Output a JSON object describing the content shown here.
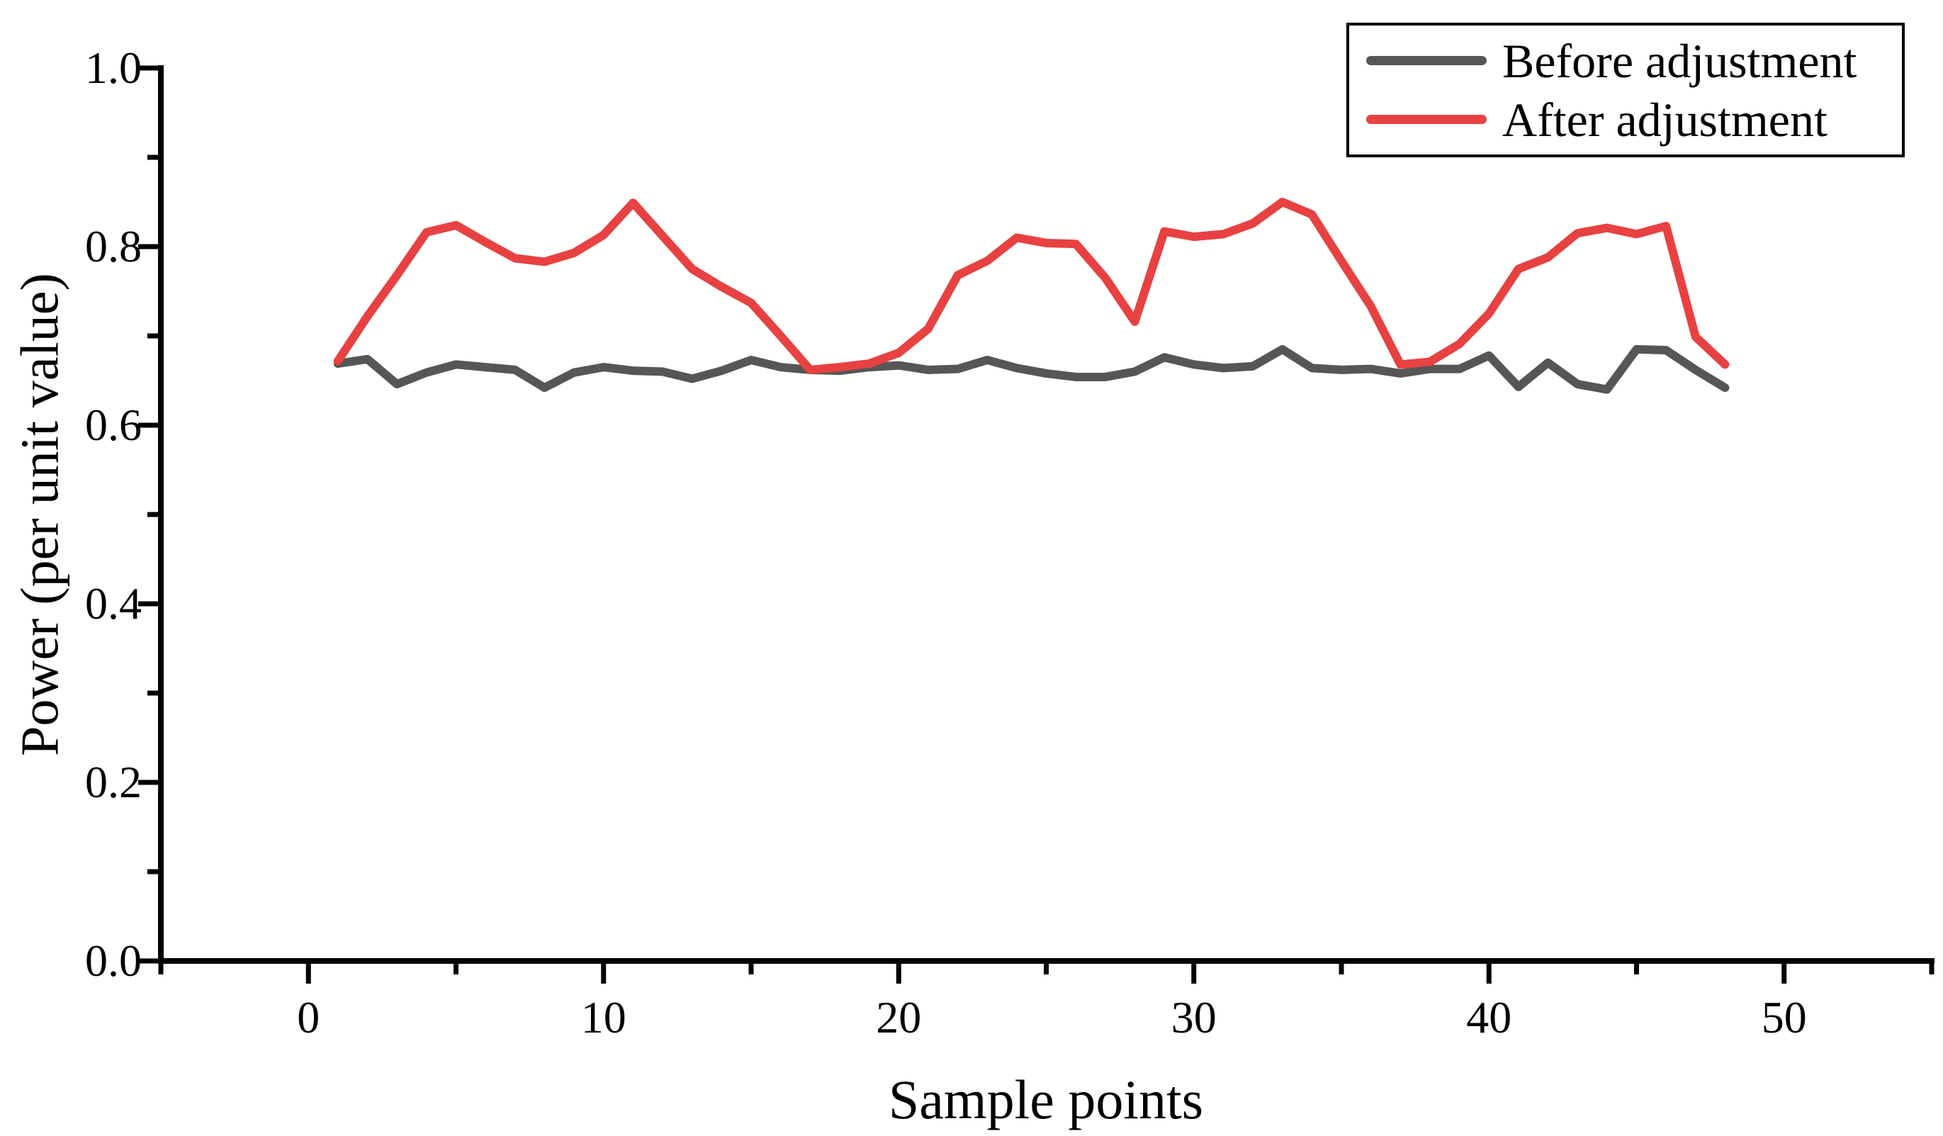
{
  "chart_data": {
    "type": "line",
    "title": "",
    "xlabel": "Sample points",
    "ylabel": "Power (per unit value)",
    "xlim": [
      -5,
      55
    ],
    "ylim": [
      0.0,
      1.0
    ],
    "grid": false,
    "legend_position": "top-right",
    "x_major_ticks": [
      0,
      10,
      20,
      30,
      40,
      50
    ],
    "x_tick_labels": [
      "0",
      "10",
      "20",
      "30",
      "40",
      "50"
    ],
    "x_minor_step": 5,
    "y_major_ticks": [
      0.0,
      0.2,
      0.4,
      0.6,
      0.8,
      1.0
    ],
    "y_tick_labels": [
      "0.0",
      "0.2",
      "0.4",
      "0.6",
      "0.8",
      "1.0"
    ],
    "y_minor_step": 0.1,
    "x": [
      1,
      2,
      3,
      4,
      5,
      6,
      7,
      8,
      9,
      10,
      11,
      12,
      13,
      14,
      15,
      16,
      17,
      18,
      19,
      20,
      21,
      22,
      23,
      24,
      25,
      26,
      27,
      28,
      29,
      30,
      31,
      32,
      33,
      34,
      35,
      36,
      37,
      38,
      39,
      40,
      41,
      42,
      43,
      44,
      45,
      46,
      47,
      48
    ],
    "series": [
      {
        "name": "Before adjustment",
        "color": "#565656",
        "values": [
          0.669,
          0.674,
          0.646,
          0.659,
          0.668,
          0.665,
          0.662,
          0.642,
          0.659,
          0.665,
          0.661,
          0.66,
          0.652,
          0.661,
          0.673,
          0.665,
          0.662,
          0.661,
          0.665,
          0.667,
          0.662,
          0.663,
          0.673,
          0.664,
          0.658,
          0.654,
          0.654,
          0.66,
          0.676,
          0.668,
          0.664,
          0.666,
          0.685,
          0.664,
          0.662,
          0.663,
          0.658,
          0.663,
          0.663,
          0.678,
          0.643,
          0.67,
          0.646,
          0.64,
          0.685,
          0.684,
          0.662,
          0.642
        ]
      },
      {
        "name": "After adjustment",
        "color": "#e84141",
        "values": [
          0.672,
          0.722,
          0.768,
          0.816,
          0.824,
          0.805,
          0.787,
          0.783,
          0.793,
          0.813,
          0.849,
          0.812,
          0.775,
          0.755,
          0.737,
          0.7,
          0.662,
          0.665,
          0.669,
          0.681,
          0.708,
          0.768,
          0.784,
          0.81,
          0.804,
          0.803,
          0.765,
          0.716,
          0.817,
          0.811,
          0.814,
          0.826,
          0.85,
          0.836,
          0.784,
          0.733,
          0.668,
          0.671,
          0.691,
          0.725,
          0.775,
          0.788,
          0.815,
          0.821,
          0.814,
          0.823,
          0.699,
          0.668
        ]
      }
    ]
  }
}
